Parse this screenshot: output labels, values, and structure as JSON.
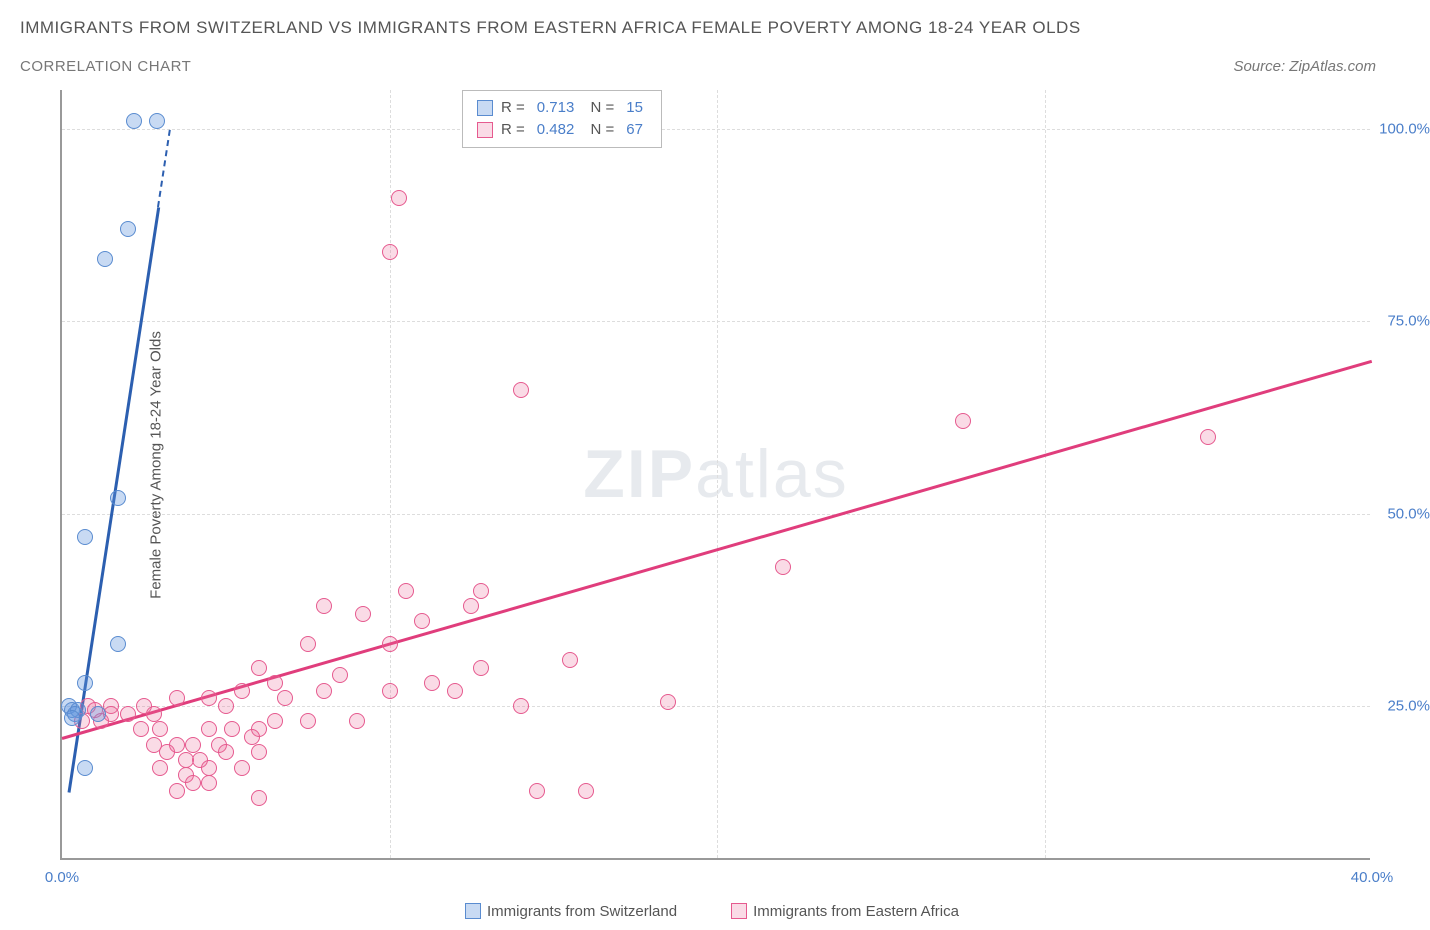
{
  "title": "IMMIGRANTS FROM SWITZERLAND VS IMMIGRANTS FROM EASTERN AFRICA FEMALE POVERTY AMONG 18-24 YEAR OLDS",
  "subtitle": "CORRELATION CHART",
  "source": "Source: ZipAtlas.com",
  "ylabel": "Female Poverty Among 18-24 Year Olds",
  "watermark_a": "ZIP",
  "watermark_b": "atlas",
  "chart": {
    "type": "scatter",
    "xlim": [
      0,
      40
    ],
    "ylim": [
      5,
      105
    ],
    "xticks": [
      {
        "v": 0,
        "label": "0.0%"
      },
      {
        "v": 40,
        "label": "40.0%"
      }
    ],
    "yticks": [
      {
        "v": 25,
        "label": "25.0%"
      },
      {
        "v": 50,
        "label": "50.0%"
      },
      {
        "v": 75,
        "label": "75.0%"
      },
      {
        "v": 100,
        "label": "100.0%"
      }
    ],
    "gridlines_v": [
      10,
      20,
      30
    ],
    "background_color": "#ffffff",
    "grid_color": "#dddddd",
    "axis_color": "#999999",
    "tick_color": "#4a7ec9"
  },
  "series": [
    {
      "name": "Immigrants from Switzerland",
      "short": "switzerland",
      "color_fill": "rgba(96,150,222,0.35)",
      "color_stroke": "#5a8cd0",
      "trend_color": "#2c5fb0",
      "R": "0.713",
      "N": "15",
      "trend": {
        "x1": 0.2,
        "y1": 14,
        "x2": 3.3,
        "y2": 100,
        "dash_from_y": 90
      },
      "points": [
        {
          "x": 2.2,
          "y": 101
        },
        {
          "x": 2.9,
          "y": 101
        },
        {
          "x": 2.0,
          "y": 87
        },
        {
          "x": 1.3,
          "y": 83
        },
        {
          "x": 1.7,
          "y": 52
        },
        {
          "x": 0.7,
          "y": 47
        },
        {
          "x": 1.7,
          "y": 33
        },
        {
          "x": 0.7,
          "y": 28
        },
        {
          "x": 0.2,
          "y": 25
        },
        {
          "x": 0.3,
          "y": 24.5
        },
        {
          "x": 0.5,
          "y": 24.5
        },
        {
          "x": 0.4,
          "y": 24
        },
        {
          "x": 0.3,
          "y": 23.5
        },
        {
          "x": 1.1,
          "y": 24
        },
        {
          "x": 0.7,
          "y": 17
        }
      ]
    },
    {
      "name": "Immigrants from Eastern Africa",
      "short": "eastern-africa",
      "color_fill": "rgba(235,110,155,0.25)",
      "color_stroke": "#e65a8f",
      "trend_color": "#e03d7c",
      "R": "0.482",
      "N": "67",
      "trend": {
        "x1": 0,
        "y1": 21,
        "x2": 40,
        "y2": 70
      },
      "points": [
        {
          "x": 10.3,
          "y": 91
        },
        {
          "x": 10.0,
          "y": 84
        },
        {
          "x": 14.0,
          "y": 66
        },
        {
          "x": 27.5,
          "y": 62
        },
        {
          "x": 35.0,
          "y": 60
        },
        {
          "x": 22.0,
          "y": 43
        },
        {
          "x": 10.5,
          "y": 40
        },
        {
          "x": 12.8,
          "y": 40
        },
        {
          "x": 8.0,
          "y": 38
        },
        {
          "x": 12.5,
          "y": 38
        },
        {
          "x": 9.2,
          "y": 37
        },
        {
          "x": 11.0,
          "y": 36
        },
        {
          "x": 10.0,
          "y": 33
        },
        {
          "x": 7.5,
          "y": 33
        },
        {
          "x": 15.5,
          "y": 31
        },
        {
          "x": 12.8,
          "y": 30
        },
        {
          "x": 6.0,
          "y": 30
        },
        {
          "x": 8.5,
          "y": 29
        },
        {
          "x": 11.3,
          "y": 28
        },
        {
          "x": 6.5,
          "y": 28
        },
        {
          "x": 5.5,
          "y": 27
        },
        {
          "x": 8.0,
          "y": 27
        },
        {
          "x": 12.0,
          "y": 27
        },
        {
          "x": 10.0,
          "y": 27
        },
        {
          "x": 3.5,
          "y": 26
        },
        {
          "x": 4.5,
          "y": 26
        },
        {
          "x": 6.8,
          "y": 26
        },
        {
          "x": 18.5,
          "y": 25.5
        },
        {
          "x": 14.0,
          "y": 25
        },
        {
          "x": 5.0,
          "y": 25
        },
        {
          "x": 2.5,
          "y": 25
        },
        {
          "x": 1.5,
          "y": 25
        },
        {
          "x": 0.8,
          "y": 25
        },
        {
          "x": 1.0,
          "y": 24.5
        },
        {
          "x": 1.5,
          "y": 24
        },
        {
          "x": 2.0,
          "y": 24
        },
        {
          "x": 2.8,
          "y": 24
        },
        {
          "x": 1.2,
          "y": 23
        },
        {
          "x": 0.6,
          "y": 23
        },
        {
          "x": 6.5,
          "y": 23
        },
        {
          "x": 7.5,
          "y": 23
        },
        {
          "x": 9.0,
          "y": 23
        },
        {
          "x": 2.4,
          "y": 22
        },
        {
          "x": 3.0,
          "y": 22
        },
        {
          "x": 4.5,
          "y": 22
        },
        {
          "x": 5.2,
          "y": 22
        },
        {
          "x": 6.0,
          "y": 22
        },
        {
          "x": 5.8,
          "y": 21
        },
        {
          "x": 3.5,
          "y": 20
        },
        {
          "x": 4.0,
          "y": 20
        },
        {
          "x": 4.8,
          "y": 20
        },
        {
          "x": 3.2,
          "y": 19
        },
        {
          "x": 5.0,
          "y": 19
        },
        {
          "x": 6.0,
          "y": 19
        },
        {
          "x": 4.2,
          "y": 18
        },
        {
          "x": 3.8,
          "y": 18
        },
        {
          "x": 4.5,
          "y": 17
        },
        {
          "x": 5.5,
          "y": 17
        },
        {
          "x": 3.0,
          "y": 17
        },
        {
          "x": 3.8,
          "y": 16
        },
        {
          "x": 4.5,
          "y": 15
        },
        {
          "x": 4.0,
          "y": 15
        },
        {
          "x": 14.5,
          "y": 14
        },
        {
          "x": 16.0,
          "y": 14
        },
        {
          "x": 6.0,
          "y": 13
        },
        {
          "x": 3.5,
          "y": 14
        },
        {
          "x": 2.8,
          "y": 20
        }
      ]
    }
  ],
  "legend": {
    "r_label": "R =",
    "n_label": "N ="
  }
}
